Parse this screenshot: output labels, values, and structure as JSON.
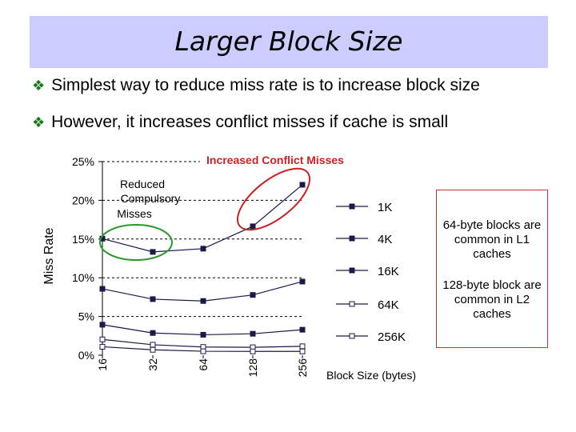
{
  "title": "Larger Block Size",
  "bullets": [
    "Simplest way to reduce miss rate is to increase block size",
    "However, it increases conflict misses if cache is small"
  ],
  "bullet_mark": "❖",
  "side_notes": [
    "64-byte blocks are common in L1 caches",
    "128-byte block are common in L2 caches"
  ],
  "annotations": {
    "conflict": "Increased Conflict Misses",
    "compulsory": "Reduced Compulsory Misses"
  },
  "colors": {
    "title_bg": "#ccccff",
    "bullet_mark": "#1a7a1a",
    "conflict_text": "#cc2222",
    "conflict_ellipse": "#cc2222",
    "compulsory_ellipse": "#2a9a2a",
    "side_box_border": "#cc3333"
  },
  "chart_data": {
    "type": "line",
    "ylabel": "Miss Rate",
    "xlabel": "Block Size (bytes)",
    "categories": [
      "16",
      "32",
      "64",
      "128",
      "256"
    ],
    "y_ticks": [
      "0%",
      "5%",
      "10%",
      "15%",
      "20%",
      "25%"
    ],
    "ylim": [
      0,
      25
    ],
    "series": [
      {
        "name": "1K",
        "values": [
          15.05,
          13.34,
          13.76,
          16.64,
          22.01
        ]
      },
      {
        "name": "4K",
        "values": [
          8.57,
          7.24,
          7.0,
          7.78,
          9.51
        ]
      },
      {
        "name": "16K",
        "values": [
          3.94,
          2.87,
          2.64,
          2.77,
          3.29
        ]
      },
      {
        "name": "64K",
        "values": [
          2.04,
          1.35,
          1.06,
          1.02,
          1.15
        ]
      },
      {
        "name": "256K",
        "values": [
          1.09,
          0.7,
          0.51,
          0.49,
          0.49
        ]
      }
    ]
  }
}
